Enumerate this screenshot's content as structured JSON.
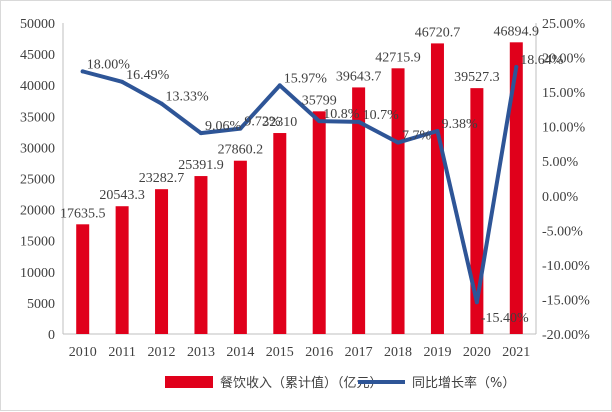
{
  "chart_data": {
    "type": "bar",
    "categories": [
      "2010",
      "2011",
      "2012",
      "2013",
      "2014",
      "2015",
      "2016",
      "2017",
      "2018",
      "2019",
      "2020",
      "2021"
    ],
    "series": [
      {
        "name": "餐饮收入（累计值）（亿元）",
        "kind": "bar",
        "axis": "left",
        "color": "#e0001b",
        "values": [
          17635.5,
          20543.3,
          23282.7,
          25391.9,
          27860.2,
          32310,
          35799,
          39643.7,
          42715.9,
          46720.7,
          39527.3,
          46894.9
        ],
        "labels": [
          "17635.5",
          "20543.3",
          "23282.7",
          "25391.9",
          "27860.2",
          "32310",
          "35799",
          "39643.7",
          "42715.9",
          "46720.7",
          "39527.3",
          "46894.9"
        ]
      },
      {
        "name": "同比增长率（%）",
        "kind": "line",
        "axis": "right",
        "color": "#2e5597",
        "values": [
          18.0,
          16.49,
          13.33,
          9.06,
          9.72,
          15.97,
          10.8,
          10.7,
          7.7,
          9.38,
          -15.4,
          18.64
        ],
        "labels": [
          "18.00%",
          "16.49%",
          "13.33%",
          "9.06%",
          "9.72%",
          "15.97%",
          "10.8%",
          "10.7%",
          "7.7%",
          "9.38%",
          "-15.40%",
          "18.64%"
        ]
      }
    ],
    "y_left": {
      "min": 0,
      "max": 50000,
      "step": 5000,
      "ticks": [
        "0",
        "5000",
        "10000",
        "15000",
        "20000",
        "25000",
        "30000",
        "35000",
        "40000",
        "45000",
        "50000"
      ]
    },
    "y_right": {
      "min": -20,
      "max": 25,
      "step": 5,
      "ticks": [
        "-20.00%",
        "-15.00%",
        "-10.00%",
        "-5.00%",
        "0.00%",
        "5.00%",
        "10.00%",
        "15.00%",
        "20.00%",
        "25.00%"
      ]
    },
    "grid": false,
    "legend_position": "bottom"
  }
}
